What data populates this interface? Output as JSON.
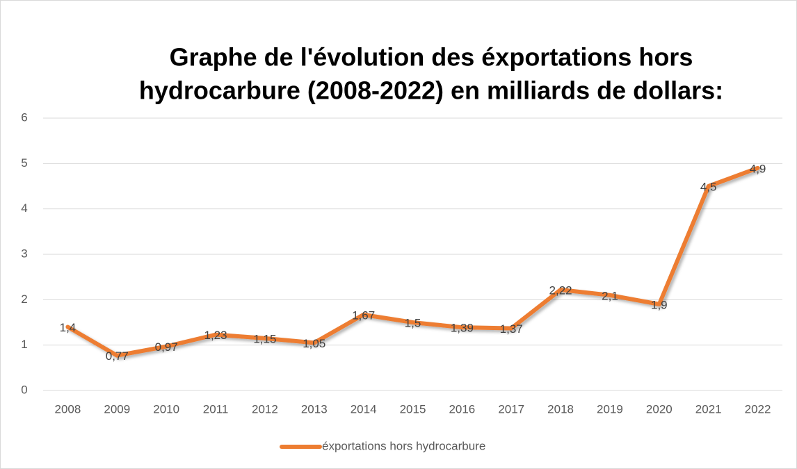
{
  "chart_data": {
    "type": "line",
    "title": [
      "Graphe de l'évolution des éxportations hors",
      "hydrocarbure (2008-2022) en milliards de dollars:"
    ],
    "categories": [
      "2008",
      "2009",
      "2010",
      "2011",
      "2012",
      "2013",
      "2014",
      "2015",
      "2016",
      "2017",
      "2018",
      "2019",
      "2020",
      "2021",
      "2022"
    ],
    "series": [
      {
        "name": "éxportations hors hydrocarbure",
        "color": "#ed7d31",
        "values": [
          1.4,
          0.77,
          0.97,
          1.23,
          1.15,
          1.05,
          1.67,
          1.5,
          1.39,
          1.37,
          2.22,
          2.1,
          1.9,
          4.5,
          4.9
        ],
        "value_labels": [
          "1,4",
          "0,77",
          "0,97",
          "1,23",
          "1,15",
          "1,05",
          "1,67",
          "1,5",
          "1,39",
          "1,37",
          "2,22",
          "2,1",
          "1,9",
          "4,5",
          "4,9"
        ]
      }
    ],
    "ylim": [
      0,
      6
    ],
    "yticks": [
      0,
      1,
      2,
      3,
      4,
      5,
      6
    ],
    "grid": true,
    "legend": "bottom"
  }
}
